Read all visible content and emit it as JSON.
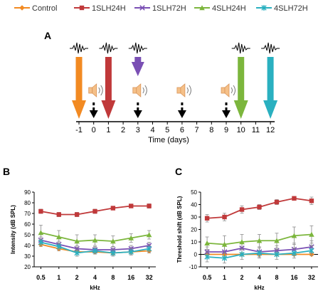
{
  "legend": [
    {
      "name": "Control",
      "color": "#f28a22",
      "marker": "diamond"
    },
    {
      "name": "1SLH24H",
      "color": "#c0393a",
      "marker": "square"
    },
    {
      "name": "1SLH72H",
      "color": "#7a4fb4",
      "marker": "x"
    },
    {
      "name": "4SLH24H",
      "color": "#7cb63d",
      "marker": "triangle"
    },
    {
      "name": "4SLH72H",
      "color": "#2ab0c0",
      "marker": "star"
    }
  ],
  "panels": {
    "A": {
      "label": "A"
    },
    "B": {
      "label": "B"
    },
    "C": {
      "label": "C"
    }
  },
  "timeline": {
    "xlabel": "Time (days)",
    "ticks": [
      -1,
      0,
      1,
      2,
      3,
      4,
      5,
      6,
      7,
      8,
      9,
      10,
      11,
      12
    ],
    "abr_arrows": [
      {
        "day": -1,
        "color": "#f28a22"
      },
      {
        "day": 1,
        "color": "#c0393a"
      },
      {
        "day": 3,
        "color": "#7a4fb4"
      },
      {
        "day": 10,
        "color": "#7cb63d"
      },
      {
        "day": 12,
        "color": "#2ab0c0"
      }
    ],
    "noise_exposures": [
      0,
      3,
      6,
      9
    ],
    "icons": {
      "abr": "waveform-icon",
      "noise": "speaker-icon",
      "exposure_arrow": "dashed-arrow-icon"
    }
  },
  "chart_data": [
    {
      "panel": "B",
      "type": "line",
      "xlabel": "kHz",
      "ylabel": "Intensity (dB SPL)",
      "categories": [
        "0.5",
        "1",
        "2",
        "4",
        "8",
        "16",
        "32"
      ],
      "ylim": [
        20,
        90
      ],
      "yticks": [
        20,
        30,
        40,
        50,
        60,
        70,
        80,
        90
      ],
      "grid": false,
      "series": [
        {
          "name": "Control",
          "values": [
            41,
            37,
            34,
            34,
            33,
            34,
            35
          ],
          "err": [
            2,
            2,
            2,
            2,
            2,
            2,
            2
          ]
        },
        {
          "name": "1SLH24H",
          "values": [
            72,
            69,
            69,
            72,
            75,
            77,
            77
          ],
          "err": [
            2,
            2,
            2,
            2,
            1,
            1,
            2
          ]
        },
        {
          "name": "1SLH72H",
          "values": [
            45,
            41,
            37,
            36,
            36,
            37,
            40
          ],
          "err": [
            3,
            3,
            3,
            3,
            3,
            3,
            3
          ]
        },
        {
          "name": "4SLH24H",
          "values": [
            52,
            48,
            44,
            45,
            44,
            47,
            50
          ],
          "err": [
            7,
            6,
            6,
            5,
            5,
            4,
            4
          ]
        },
        {
          "name": "4SLH72H",
          "values": [
            43,
            39,
            33,
            35,
            33,
            34,
            37
          ],
          "err": [
            3,
            3,
            3,
            3,
            3,
            3,
            3
          ]
        }
      ]
    },
    {
      "panel": "C",
      "type": "line",
      "xlabel": "kHz",
      "ylabel": "Threshold shift (dB SPL)",
      "categories": [
        "0.5",
        "1",
        "2",
        "4",
        "8",
        "16",
        "32"
      ],
      "ylim": [
        -10,
        50
      ],
      "yticks": [
        -10,
        0,
        10,
        20,
        30,
        40,
        50
      ],
      "grid": false,
      "series": [
        {
          "name": "Control",
          "values": [
            0,
            0,
            0,
            0,
            0,
            0,
            0
          ],
          "err": [
            0,
            0,
            0,
            0,
            0,
            0,
            0
          ]
        },
        {
          "name": "1SLH24H",
          "values": [
            29,
            30,
            36,
            38,
            42,
            45,
            43
          ],
          "err": [
            3,
            3,
            3,
            2,
            2,
            1,
            3
          ]
        },
        {
          "name": "1SLH72H",
          "values": [
            2,
            2,
            5,
            2,
            3,
            4,
            6
          ],
          "err": [
            4,
            5,
            4,
            4,
            4,
            5,
            5
          ]
        },
        {
          "name": "4SLH24H",
          "values": [
            9,
            8,
            10,
            11,
            11,
            15,
            16
          ],
          "err": [
            5,
            7,
            6,
            5,
            6,
            7,
            7
          ]
        },
        {
          "name": "4SLH72H",
          "values": [
            -2,
            -3,
            0,
            1,
            0,
            1,
            3
          ],
          "err": [
            4,
            4,
            4,
            4,
            4,
            4,
            4
          ]
        }
      ]
    }
  ]
}
